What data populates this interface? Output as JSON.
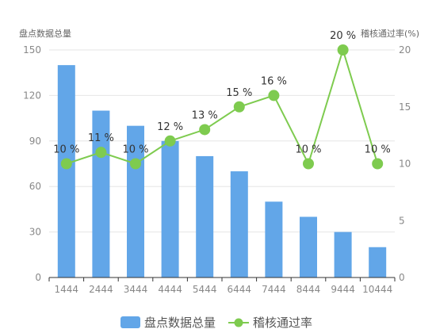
{
  "chart_data": {
    "type": "bar+line",
    "categories": [
      "1444",
      "2444",
      "3444",
      "4444",
      "5444",
      "6444",
      "7444",
      "8444",
      "9444",
      "10444"
    ],
    "series": [
      {
        "name": "盘点数据总量",
        "type": "bar",
        "axis": "left",
        "color": "#62a6e8",
        "values": [
          140,
          110,
          100,
          90,
          80,
          70,
          50,
          40,
          30,
          20
        ]
      },
      {
        "name": "稽核通过率",
        "type": "line",
        "axis": "right",
        "color": "#7ecb4f",
        "values": [
          10,
          11,
          10,
          12,
          13,
          15,
          16,
          10,
          20,
          10
        ],
        "labels": [
          "10 %",
          "11 %",
          "10 %",
          "12 %",
          "13 %",
          "15 %",
          "16 %",
          "10 %",
          "20 %",
          "10 %"
        ]
      }
    ],
    "left_axis": {
      "name": "盘点数据总量",
      "range": [
        0,
        150
      ],
      "ticks": [
        "0",
        "30",
        "60",
        "90",
        "120",
        "150"
      ]
    },
    "right_axis": {
      "name": "稽核通过率(%)",
      "range": [
        0,
        20
      ],
      "ticks": [
        "0",
        "5",
        "10",
        "15",
        "20"
      ]
    },
    "grid": true,
    "legend_position": "bottom-center"
  }
}
